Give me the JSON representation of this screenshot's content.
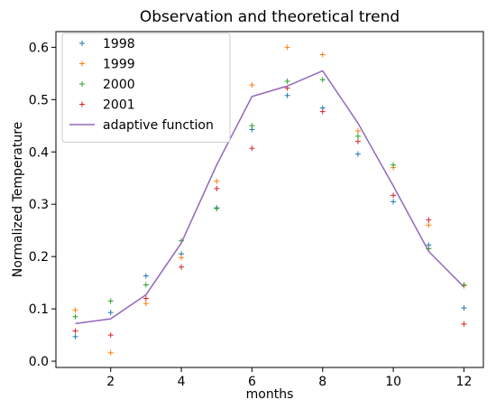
{
  "chart_data": {
    "type": "scatter",
    "title": "Observation and theoretical trend",
    "xlabel": "months",
    "ylabel": "Normalized Temperature",
    "xlim": [
      0.45,
      12.55
    ],
    "ylim": [
      -0.012,
      0.63
    ],
    "xticks": [
      2,
      4,
      6,
      8,
      10,
      12
    ],
    "yticks": [
      0.0,
      0.1,
      0.2,
      0.3,
      0.4,
      0.5,
      0.6
    ],
    "legend_position": "top-left",
    "grid": false,
    "x": [
      1,
      2,
      3,
      4,
      5,
      6,
      7,
      8,
      9,
      10,
      11,
      12
    ],
    "series": [
      {
        "name": "1998",
        "kind": "scatter",
        "marker": "plus",
        "color": "#1f77b4",
        "values": [
          0.047,
          0.093,
          0.163,
          0.205,
          0.293,
          0.443,
          0.508,
          0.484,
          0.396,
          0.305,
          0.222,
          0.102
        ]
      },
      {
        "name": "1999",
        "kind": "scatter",
        "marker": "plus",
        "color": "#ff7f0e",
        "values": [
          0.098,
          0.016,
          0.11,
          0.198,
          0.344,
          0.528,
          0.6,
          0.586,
          0.44,
          0.37,
          0.26,
          0.144
        ]
      },
      {
        "name": "2000",
        "kind": "scatter",
        "marker": "plus",
        "color": "#2ca02c",
        "values": [
          0.085,
          0.115,
          0.146,
          0.23,
          0.292,
          0.45,
          0.535,
          0.538,
          0.43,
          0.375,
          0.215,
          0.146
        ]
      },
      {
        "name": "2001",
        "kind": "scatter",
        "marker": "plus",
        "color": "#d62728",
        "values": [
          0.058,
          0.05,
          0.12,
          0.18,
          0.33,
          0.407,
          0.522,
          0.477,
          0.42,
          0.317,
          0.27,
          0.071
        ]
      },
      {
        "name": "adaptive function",
        "kind": "line",
        "color": "#9467bd",
        "values": [
          0.072,
          0.081,
          0.127,
          0.226,
          0.375,
          0.506,
          0.526,
          0.555,
          0.455,
          0.335,
          0.21,
          0.142
        ]
      }
    ]
  }
}
